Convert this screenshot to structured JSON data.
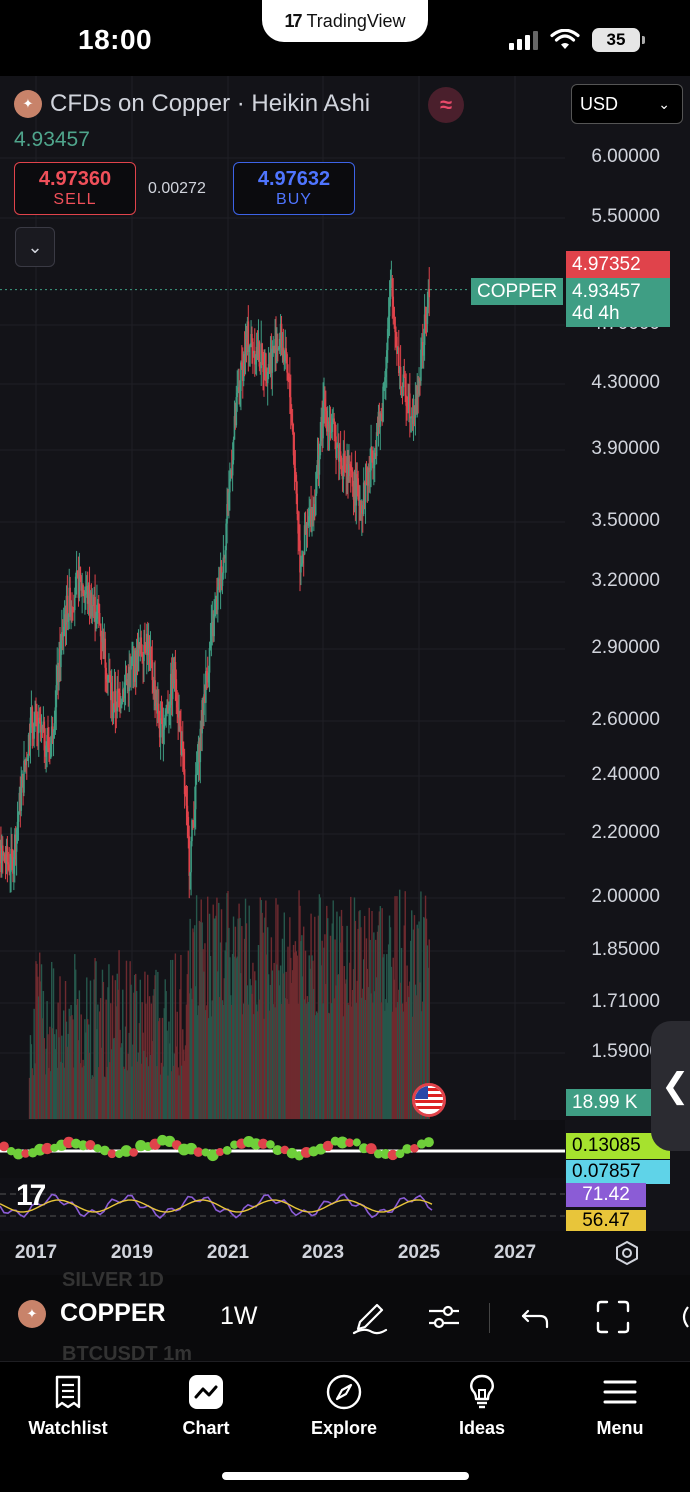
{
  "status_bar": {
    "time": "18:00",
    "battery": "35",
    "app_pill": "TradingView"
  },
  "header": {
    "symbol_title": "CFDs on Copper · Heikin Ashi",
    "currency": "USD",
    "last_price": "4.93457",
    "sell": {
      "price": "4.97360",
      "label": "SELL"
    },
    "buy": {
      "price": "4.97632",
      "label": "BUY"
    },
    "spread": "0.00272"
  },
  "price_axis": [
    "6.00000",
    "5.50000",
    "4.70000",
    "4.30000",
    "3.90000",
    "3.50000",
    "3.20000",
    "2.90000",
    "2.60000",
    "2.40000",
    "2.20000",
    "2.00000",
    "1.85000",
    "1.71000",
    "1.59000"
  ],
  "tags": {
    "ask": "4.97352",
    "symbol": "COPPER",
    "current": "4.93457",
    "countdown": "4d 4h",
    "volume": "18.99 K",
    "osc_1": "0.13085",
    "osc_2": "0.07857",
    "rsi_1": "71.42",
    "rsi_2": "56.47"
  },
  "time_axis": [
    "2017",
    "2019",
    "2021",
    "2023",
    "2025",
    "2027"
  ],
  "toolbar": {
    "symbol": "COPPER",
    "interval": "1W",
    "ghost_top": "SILVER 1D",
    "ghost_bottom": "BTCUSDT 1m"
  },
  "nav": [
    {
      "label": "Watchlist",
      "icon": "watchlist-icon"
    },
    {
      "label": "Chart",
      "icon": "chart-icon"
    },
    {
      "label": "Explore",
      "icon": "compass-icon"
    },
    {
      "label": "Ideas",
      "icon": "lightbulb-icon"
    },
    {
      "label": "Menu",
      "icon": "menu-icon"
    }
  ],
  "colors": {
    "up": "#3f9e84",
    "down": "#e0434b",
    "rsi": "#8b5cd6",
    "rsi_ma": "#e8c53a",
    "background": "#131318"
  },
  "chart_data": {
    "type": "candlestick",
    "title": "CFDs on Copper · Heikin Ashi",
    "interval": "1W",
    "x_range": [
      "2016",
      "2025"
    ],
    "y_scale": "log",
    "ylim": [
      1.5,
      6.2
    ],
    "approx_close_path": [
      {
        "x": "2016.0",
        "y": 2.15
      },
      {
        "x": "2016.5",
        "y": 2.1
      },
      {
        "x": "2016.9",
        "y": 2.6
      },
      {
        "x": "2017.3",
        "y": 2.5
      },
      {
        "x": "2017.6",
        "y": 3.05
      },
      {
        "x": "2017.9",
        "y": 3.2
      },
      {
        "x": "2018.3",
        "y": 3.05
      },
      {
        "x": "2018.6",
        "y": 2.65
      },
      {
        "x": "2019.0",
        "y": 2.8
      },
      {
        "x": "2019.3",
        "y": 2.95
      },
      {
        "x": "2019.6",
        "y": 2.55
      },
      {
        "x": "2019.9",
        "y": 2.8
      },
      {
        "x": "2020.2",
        "y": 2.1
      },
      {
        "x": "2020.5",
        "y": 2.7
      },
      {
        "x": "2020.9",
        "y": 3.3
      },
      {
        "x": "2021.2",
        "y": 4.2
      },
      {
        "x": "2021.4",
        "y": 4.6
      },
      {
        "x": "2021.8",
        "y": 4.4
      },
      {
        "x": "2022.1",
        "y": 4.6
      },
      {
        "x": "2022.3",
        "y": 4.2
      },
      {
        "x": "2022.5",
        "y": 3.3
      },
      {
        "x": "2022.8",
        "y": 3.6
      },
      {
        "x": "2023.0",
        "y": 4.15
      },
      {
        "x": "2023.4",
        "y": 3.8
      },
      {
        "x": "2023.8",
        "y": 3.6
      },
      {
        "x": "2024.2",
        "y": 4.1
      },
      {
        "x": "2024.4",
        "y": 4.95
      },
      {
        "x": "2024.6",
        "y": 4.3
      },
      {
        "x": "2024.9",
        "y": 4.1
      },
      {
        "x": "2025.2",
        "y": 4.93457
      }
    ]
  }
}
